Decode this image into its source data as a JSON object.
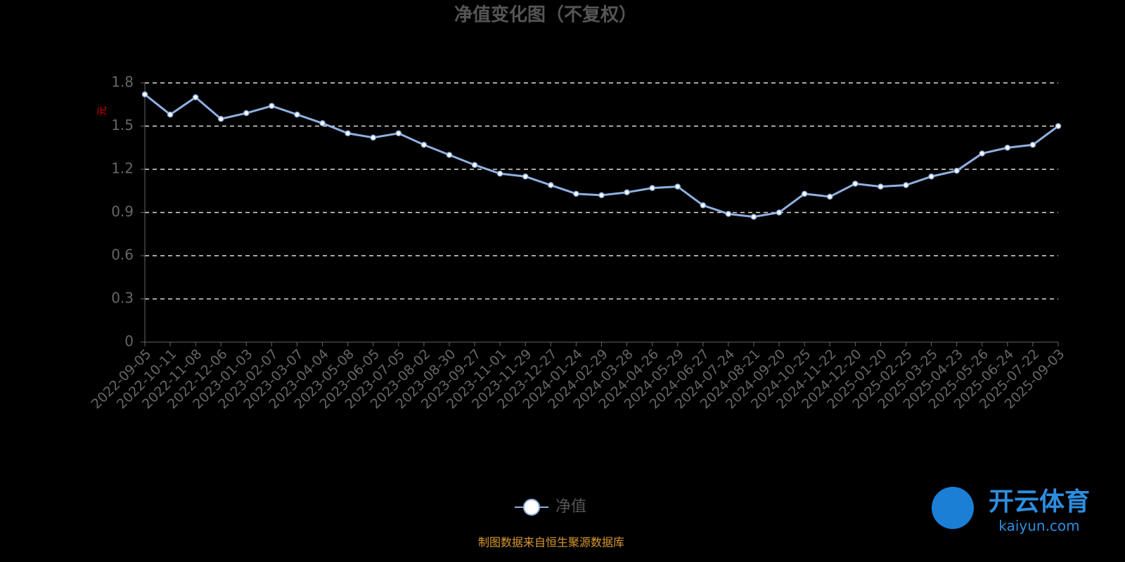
{
  "chart_data": {
    "type": "line",
    "title": "净值变化图（不复权）",
    "y_label": "元",
    "categories": [
      "2022-09-05",
      "2022-10-11",
      "2022-11-08",
      "2022-12-06",
      "2023-01-03",
      "2023-02-07",
      "2023-03-07",
      "2023-04-04",
      "2023-05-08",
      "2023-06-05",
      "2023-07-05",
      "2023-08-02",
      "2023-08-30",
      "2023-09-27",
      "2023-11-01",
      "2023-11-29",
      "2023-12-27",
      "2024-01-24",
      "2024-02-29",
      "2024-03-28",
      "2024-04-26",
      "2024-05-29",
      "2024-06-27",
      "2024-07-24",
      "2024-08-21",
      "2024-09-20",
      "2024-10-25",
      "2024-11-22",
      "2024-12-20",
      "2025-01-20",
      "2025-02-25",
      "2025-03-25",
      "2025-04-23",
      "2025-05-26",
      "2025-06-24",
      "2025-07-22",
      "2025-09-03"
    ],
    "series": [
      {
        "name": "净值",
        "color": "#8fb0e0",
        "values": [
          1.72,
          1.58,
          1.7,
          1.55,
          1.59,
          1.64,
          1.58,
          1.52,
          1.45,
          1.42,
          1.45,
          1.37,
          1.3,
          1.23,
          1.17,
          1.15,
          1.09,
          1.03,
          1.02,
          1.04,
          1.07,
          1.08,
          0.95,
          0.89,
          0.87,
          0.9,
          1.03,
          1.01,
          1.1,
          1.08,
          1.09,
          1.15,
          1.19,
          1.31,
          1.35,
          1.37,
          1.5
        ]
      }
    ],
    "ylim": [
      0,
      1.8
    ],
    "yticks": [
      0,
      0.3,
      0.6,
      0.9,
      1.2,
      1.5,
      1.8
    ],
    "grid": true,
    "source": "制图数据来自恒生聚源数据库"
  },
  "watermark": {
    "brand": "开云体育",
    "site": "kaiyun.com"
  }
}
